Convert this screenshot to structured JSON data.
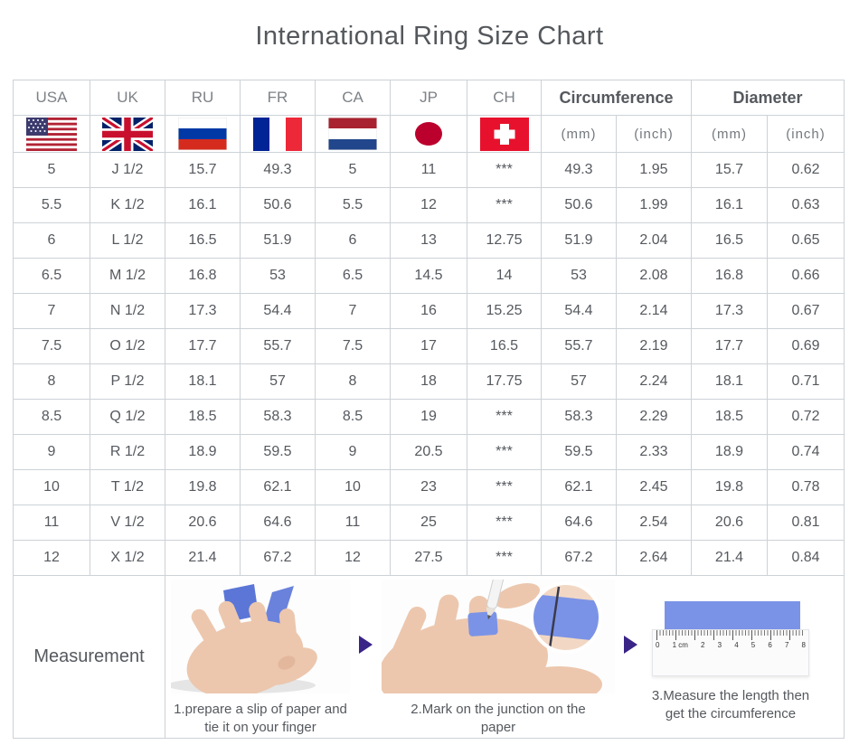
{
  "title": "International Ring Size Chart",
  "table": {
    "country_headers": [
      "USA",
      "UK",
      "RU",
      "FR",
      "CA",
      "JP",
      "CH"
    ],
    "group_headers": [
      "Circumference",
      "Diameter"
    ],
    "unit_headers": [
      "(mm)",
      "(inch)",
      "(mm)",
      "(inch)"
    ],
    "flag_icons": [
      "usa-flag",
      "uk-flag",
      "ru-flag",
      "fr-flag",
      "ca-flag",
      "jp-flag",
      "ch-flag"
    ],
    "rows": [
      [
        "5",
        "J 1/2",
        "15.7",
        "49.3",
        "5",
        "11",
        "***",
        "49.3",
        "1.95",
        "15.7",
        "0.62"
      ],
      [
        "5.5",
        "K 1/2",
        "16.1",
        "50.6",
        "5.5",
        "12",
        "***",
        "50.6",
        "1.99",
        "16.1",
        "0.63"
      ],
      [
        "6",
        "L 1/2",
        "16.5",
        "51.9",
        "6",
        "13",
        "12.75",
        "51.9",
        "2.04",
        "16.5",
        "0.65"
      ],
      [
        "6.5",
        "M 1/2",
        "16.8",
        "53",
        "6.5",
        "14.5",
        "14",
        "53",
        "2.08",
        "16.8",
        "0.66"
      ],
      [
        "7",
        "N 1/2",
        "17.3",
        "54.4",
        "7",
        "16",
        "15.25",
        "54.4",
        "2.14",
        "17.3",
        "0.67"
      ],
      [
        "7.5",
        "O 1/2",
        "17.7",
        "55.7",
        "7.5",
        "17",
        "16.5",
        "55.7",
        "2.19",
        "17.7",
        "0.69"
      ],
      [
        "8",
        "P 1/2",
        "18.1",
        "57",
        "8",
        "18",
        "17.75",
        "57",
        "2.24",
        "18.1",
        "0.71"
      ],
      [
        "8.5",
        "Q 1/2",
        "18.5",
        "58.3",
        "8.5",
        "19",
        "***",
        "58.3",
        "2.29",
        "18.5",
        "0.72"
      ],
      [
        "9",
        "R 1/2",
        "18.9",
        "59.5",
        "9",
        "20.5",
        "***",
        "59.5",
        "2.33",
        "18.9",
        "0.74"
      ],
      [
        "10",
        "T 1/2",
        "19.8",
        "62.1",
        "10",
        "23",
        "***",
        "62.1",
        "2.45",
        "19.8",
        "0.78"
      ],
      [
        "11",
        "V 1/2",
        "20.6",
        "64.6",
        "11",
        "25",
        "***",
        "64.6",
        "2.54",
        "20.6",
        "0.81"
      ],
      [
        "12",
        "X 1/2",
        "21.4",
        "67.2",
        "12",
        "27.5",
        "***",
        "67.2",
        "2.64",
        "21.4",
        "0.84"
      ]
    ]
  },
  "measurement": {
    "label": "Measurement",
    "steps": [
      {
        "caption": "1.prepare a slip of paper and tie it on your finger"
      },
      {
        "caption": "2.Mark on the junction on the paper"
      },
      {
        "caption": "3.Measure the length then get the circumference"
      }
    ],
    "ruler_labels": [
      "0",
      "1 cm",
      "2",
      "3",
      "4",
      "5",
      "6",
      "7",
      "8"
    ]
  },
  "colors": {
    "arrow_purple": "#3a2487",
    "paper_blue": "#5b76d7",
    "band_blue": "#7b93e6",
    "border_gray": "#ccd2d7",
    "text_gray": "#55595e"
  }
}
